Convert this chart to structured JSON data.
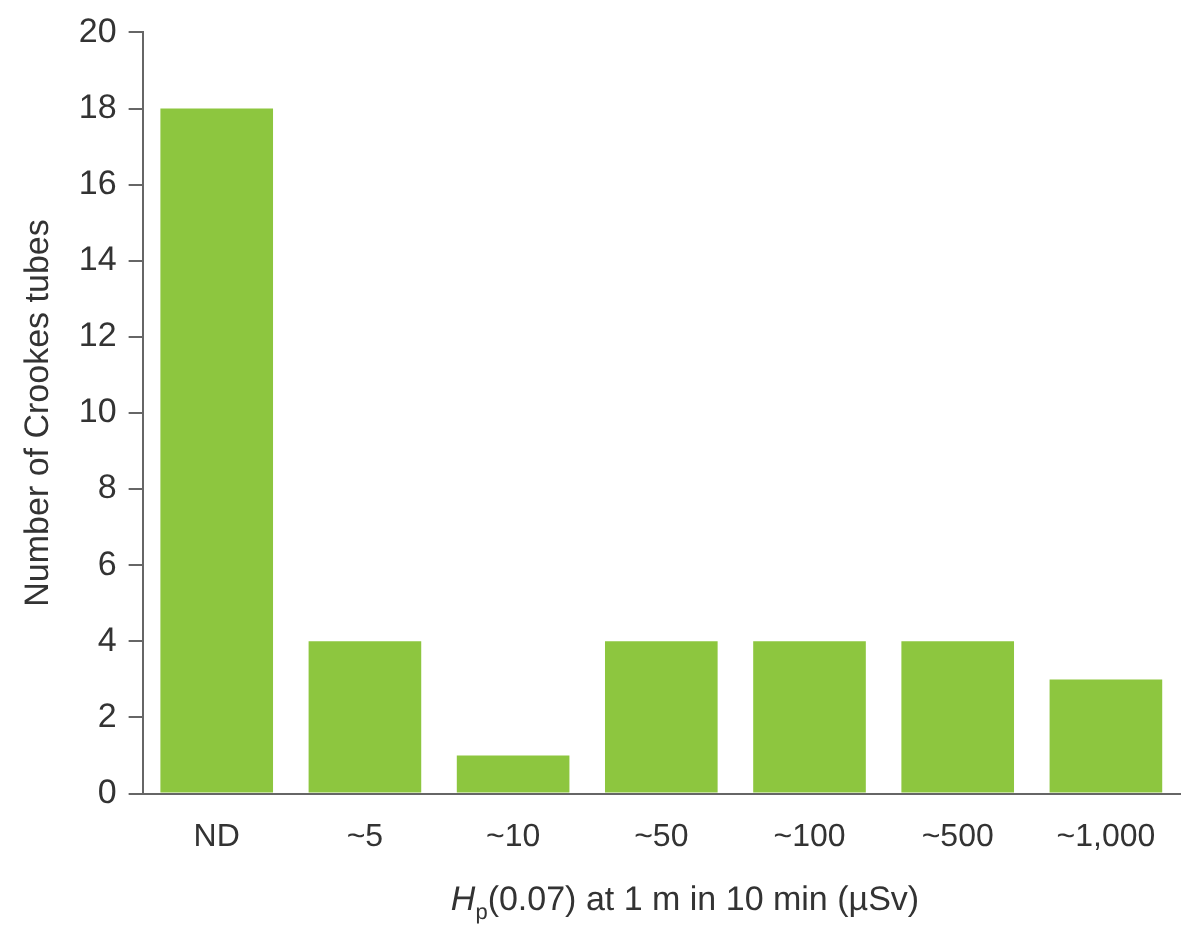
{
  "chart_data": {
    "type": "bar",
    "categories": [
      "ND",
      "~5",
      "~10",
      "~50",
      "~100",
      "~500",
      "~1,000"
    ],
    "values": [
      18,
      4,
      1,
      4,
      4,
      4,
      3
    ],
    "color": "#8dc63f",
    "xlabel": "H$_{p}$(0.07) at 1 m in 10 min (µSv)",
    "ylabel": "Number of Crookes tubes",
    "ylim": [
      0,
      20
    ],
    "yticks": [
      0,
      2,
      4,
      6,
      8,
      10,
      12,
      14,
      16,
      18,
      20
    ],
    "grid": false,
    "legend": false
  }
}
